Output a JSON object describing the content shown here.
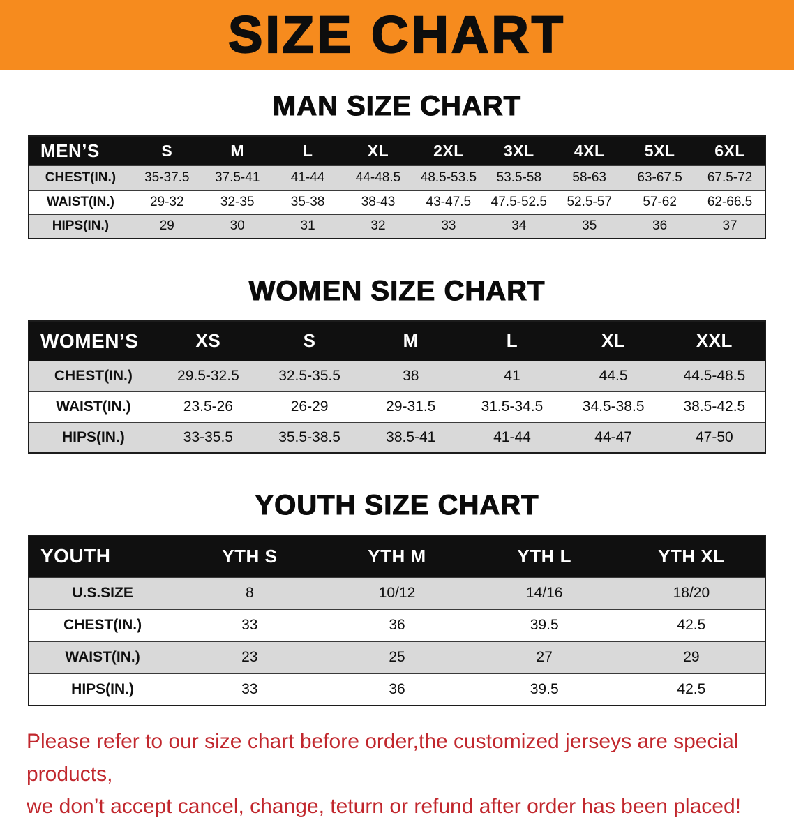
{
  "banner": {
    "title": "SIZE CHART",
    "bg_color": "#f68b1e"
  },
  "sections": [
    {
      "id": "men",
      "heading": "MAN SIZE CHART",
      "table": {
        "header": [
          "MEN’S",
          "S",
          "M",
          "L",
          "XL",
          "2XL",
          "3XL",
          "4XL",
          "5XL",
          "6XL"
        ],
        "rows": [
          {
            "label": "CHEST(IN.)",
            "values": [
              "35-37.5",
              "37.5-41",
              "41-44",
              "44-48.5",
              "48.5-53.5",
              "53.5-58",
              "58-63",
              "63-67.5",
              "67.5-72"
            ]
          },
          {
            "label": "WAIST(IN.)",
            "values": [
              "29-32",
              "32-35",
              "35-38",
              "38-43",
              "43-47.5",
              "47.5-52.5",
              "52.5-57",
              "57-62",
              "62-66.5"
            ]
          },
          {
            "label": "HIPS(IN.)",
            "values": [
              "29",
              "30",
              "31",
              "32",
              "33",
              "34",
              "35",
              "36",
              "37"
            ]
          }
        ]
      }
    },
    {
      "id": "women",
      "heading": "WOMEN SIZE CHART",
      "table": {
        "header": [
          "WOMEN’S",
          "XS",
          "S",
          "M",
          "L",
          "XL",
          "XXL"
        ],
        "rows": [
          {
            "label": "CHEST(IN.)",
            "values": [
              "29.5-32.5",
              "32.5-35.5",
              "38",
              "41",
              "44.5",
              "44.5-48.5"
            ]
          },
          {
            "label": "WAIST(IN.)",
            "values": [
              "23.5-26",
              "26-29",
              "29-31.5",
              "31.5-34.5",
              "34.5-38.5",
              "38.5-42.5"
            ]
          },
          {
            "label": "HIPS(IN.)",
            "values": [
              "33-35.5",
              "35.5-38.5",
              "38.5-41",
              "41-44",
              "44-47",
              "47-50"
            ]
          }
        ]
      }
    },
    {
      "id": "youth",
      "heading": "YOUTH SIZE CHART",
      "table": {
        "header": [
          "YOUTH",
          "YTH S",
          "YTH M",
          "YTH L",
          "YTH XL"
        ],
        "rows": [
          {
            "label": "U.S.SIZE",
            "values": [
              "8",
              "10/12",
              "14/16",
              "18/20"
            ]
          },
          {
            "label": "CHEST(IN.)",
            "values": [
              "33",
              "36",
              "39.5",
              "42.5"
            ]
          },
          {
            "label": "WAIST(IN.)",
            "values": [
              "23",
              "25",
              "27",
              "29"
            ]
          },
          {
            "label": "HIPS(IN.)",
            "values": [
              "33",
              "36",
              "39.5",
              "42.5"
            ]
          }
        ]
      }
    }
  ],
  "disclaimer": {
    "line1": "Please refer to our size chart before order,the customized jerseys are special products,",
    "line2": "we don’t accept cancel, change, teturn or refund after order has been placed!",
    "text_color": "#c1272d"
  },
  "colors": {
    "banner_bg": "#f68b1e",
    "table_header_bg": "#101010",
    "shaded_row_bg": "#d9d9d9"
  }
}
